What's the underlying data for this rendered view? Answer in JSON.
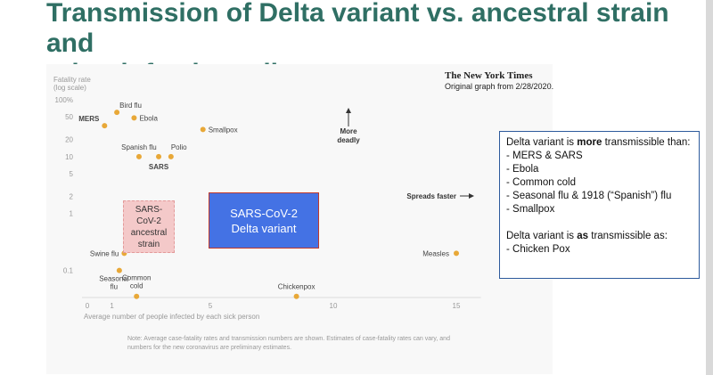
{
  "slide": {
    "title_line1": "Transmission of Delta variant vs. ancestral strain and",
    "title_line2": "other infectious diseases",
    "title_color": "#2f6f64"
  },
  "source": {
    "logo": "The New York Times",
    "caption": "Original graph from 2/28/2020."
  },
  "annotations": {
    "more_deadly": "More\ndeadly",
    "spreads_faster": "Spreads faster",
    "ancestral_box": "SARS-\nCoV-2\nancestral\nstrain",
    "delta_box": "SARS-CoV-2\nDelta variant"
  },
  "callout": {
    "line1_pre": "Delta variant is ",
    "line1_bold": "more",
    "line1_post": " transmissible than:",
    "list": [
      "-  MERS & SARS",
      "-  Ebola",
      "-  Common cold",
      "-  Seasonal flu & 1918 (“Spanish”) flu",
      "-  Smallpox"
    ],
    "line2_pre": "Delta variant is ",
    "line2_bold": "as",
    "line2_post": " transmissible as:",
    "line2_item": "- Chicken Pox"
  },
  "note": "Note: Average case-fatality rates and transmission numbers are shown. Estimates of case-fatality rates can vary, and numbers for the new coronavirus are preliminary estimates.",
  "chart_data": {
    "type": "scatter",
    "title": "",
    "xlabel": "Average number of people infected by each sick person",
    "ylabel": "Fatality rate\n(log scale)",
    "xlim": [
      0,
      16.5
    ],
    "ylim": [
      0.03,
      100
    ],
    "yscale": "log",
    "xticks": [
      0,
      1,
      5,
      10,
      15
    ],
    "yticks": [
      {
        "value": 100,
        "label": "100%"
      },
      {
        "value": 50,
        "label": "50"
      },
      {
        "value": 20,
        "label": "20"
      },
      {
        "value": 10,
        "label": "10"
      },
      {
        "value": 5,
        "label": "5"
      },
      {
        "value": 2,
        "label": "2"
      },
      {
        "value": 1,
        "label": "1"
      },
      {
        "value": 0.1,
        "label": "0.1"
      }
    ],
    "grid": false,
    "point_color": "#e8a838",
    "points": [
      {
        "label": "Bird flu",
        "x": 1.2,
        "y": 60
      },
      {
        "label": "MERS",
        "x": 0.7,
        "y": 35,
        "bold": true
      },
      {
        "label": "Ebola",
        "x": 1.9,
        "y": 48
      },
      {
        "label": "Smallpox",
        "x": 4.7,
        "y": 30
      },
      {
        "label": "Spanish flu",
        "x": 2.1,
        "y": 10
      },
      {
        "label": "SARS",
        "x": 2.9,
        "y": 10,
        "bold": true
      },
      {
        "label": "Polio",
        "x": 3.4,
        "y": 10
      },
      {
        "label": "Swine flu",
        "x": 1.5,
        "y": 0.2
      },
      {
        "label": "Seasonal\nflu",
        "x": 1.3,
        "y": 0.1
      },
      {
        "label": "Measles",
        "x": 15,
        "y": 0.2
      },
      {
        "label": "Common\ncold",
        "x": 2,
        "y": 0.035
      },
      {
        "label": "Chickenpox",
        "x": 8.5,
        "y": 0.035
      }
    ]
  }
}
